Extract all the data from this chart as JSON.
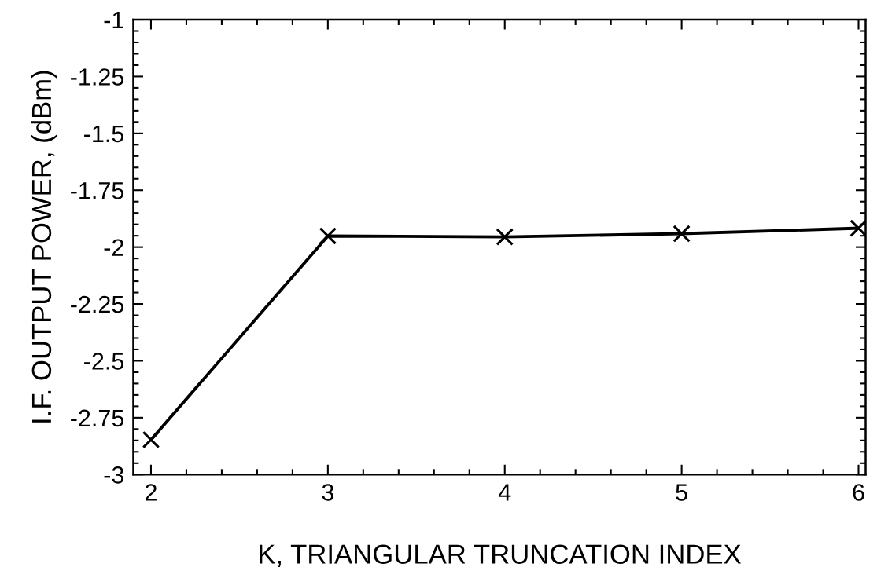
{
  "chart_data": {
    "type": "line",
    "xlabel": "K, TRIANGULAR TRUNCATION INDEX",
    "ylabel": "I.F. OUTPUT POWER, (dBm)",
    "x": [
      2,
      3,
      4,
      5,
      6
    ],
    "series": [
      {
        "color": "#000000",
        "values": [
          -2.847,
          -1.951,
          -1.955,
          -1.941,
          -1.917
        ]
      }
    ],
    "xlim": [
      1.9,
      6.04
    ],
    "ylim": [
      -3,
      -1
    ],
    "xticks": [
      2,
      3,
      4,
      5,
      6
    ],
    "yticks": [
      -3,
      -2.75,
      -2.5,
      -2.25,
      -2,
      -1.75,
      -1.5,
      -1.25,
      -1
    ],
    "marker": "cross",
    "line_style": "solid"
  }
}
